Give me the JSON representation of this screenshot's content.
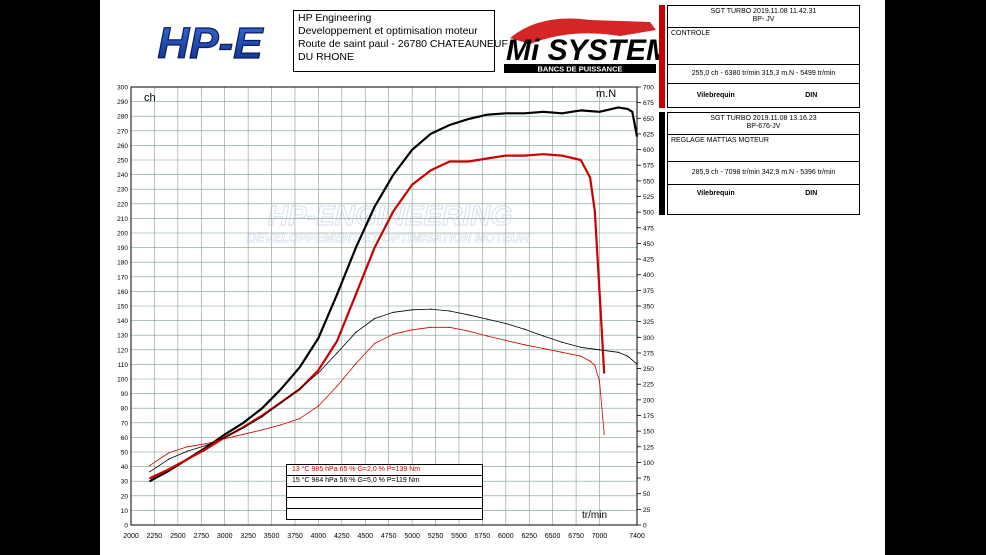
{
  "header": {
    "logo_left_text": "HP-E",
    "company_lines": [
      "HP Engineering",
      "Developpement et optimisation moteur",
      "Route de saint paul - 26780 CHATEAUNEUF",
      "DU RHONE"
    ],
    "logo_right_text": "Mi SYSTEMS",
    "logo_right_subtitle": "BANCS DE PUISSANCE"
  },
  "watermark": {
    "line1": "HP-ENGINEERING",
    "line2": "DEVELOPPEMENT ET OPTIMISATION MOTEUR"
  },
  "runs": [
    {
      "color": "#cc0000",
      "head1": "SGT TURBO   2019.11.08 11.42.31",
      "head2": "BP-      JV",
      "note": "CONTROLE",
      "values": "255,0 ch - 6380 tr/min      315,3 m.N - 5499 tr/min",
      "foot_left": "Vilebrequin",
      "foot_right": "DIN"
    },
    {
      "color": "#000000",
      "head1": "SGT TURBO   2019.11.08 13.16.23",
      "head2": "BP-676-JV",
      "note": "REGLAGE MATTIAS MOTEUR",
      "values": "285,9 ch - 7098 tr/min      342,9 m.N - 5396 tr/min",
      "foot_left": "Vilebrequin",
      "foot_right": "DIN"
    }
  ],
  "conditions": {
    "line1": "13 °C    985 hPa    65 %    G=2,0 %    P=139 Nm",
    "line2": "15 °C    984 hPa    56 %    G=5,0 %    P=119 Nm"
  },
  "chart_data": {
    "type": "line",
    "xlabel": "tr/min",
    "ylabel_left": "ch",
    "ylabel_right": "m.N",
    "xlim": [
      2000,
      7400
    ],
    "ylim_left": [
      0,
      300
    ],
    "ylim_right": [
      0,
      700
    ],
    "x_ticks": [
      2000,
      2250,
      2500,
      2750,
      3000,
      3250,
      3500,
      3750,
      4000,
      4250,
      4500,
      4750,
      5000,
      5250,
      5500,
      5750,
      6000,
      6250,
      6500,
      6750,
      7000,
      7400
    ],
    "y_left_ticks": [
      0,
      10,
      20,
      30,
      40,
      50,
      60,
      70,
      80,
      90,
      100,
      110,
      120,
      130,
      140,
      150,
      160,
      170,
      180,
      190,
      200,
      210,
      220,
      230,
      240,
      250,
      260,
      270,
      280,
      290,
      300
    ],
    "y_right_ticks": [
      0,
      25,
      50,
      75,
      100,
      125,
      150,
      175,
      200,
      225,
      250,
      275,
      300,
      325,
      350,
      375,
      400,
      425,
      450,
      475,
      500,
      525,
      550,
      575,
      600,
      625,
      650,
      675,
      700
    ],
    "grid": true,
    "series": [
      {
        "name": "",
        "axis": "left",
        "color": "#000000",
        "style": "thick",
        "x": [
          2200,
          2400,
          2600,
          2800,
          3000,
          3200,
          3400,
          3600,
          3800,
          4000,
          4200,
          4400,
          4600,
          4800,
          5000,
          5200,
          5400,
          5600,
          5800,
          6000,
          6200,
          6400,
          6600,
          6800,
          7000,
          7200,
          7300,
          7350,
          7400
        ],
        "y": [
          30,
          37,
          45,
          53,
          62,
          70,
          80,
          93,
          108,
          128,
          158,
          190,
          218,
          240,
          257,
          268,
          274,
          278,
          281,
          282,
          282,
          283,
          282,
          284,
          283,
          286,
          285,
          283,
          266
        ]
      },
      {
        "name": "",
        "axis": "left",
        "color": "#cc0000",
        "style": "thick",
        "x": [
          2200,
          2400,
          2600,
          2800,
          3000,
          3200,
          3400,
          3600,
          3800,
          4000,
          4200,
          4400,
          4600,
          4800,
          5000,
          5200,
          5400,
          5600,
          5800,
          6000,
          6200,
          6400,
          6600,
          6800,
          6900,
          6950,
          7000,
          7050
        ],
        "y": [
          32,
          38,
          45,
          52,
          60,
          67,
          75,
          84,
          93,
          106,
          126,
          158,
          190,
          215,
          233,
          243,
          249,
          249,
          251,
          253,
          253,
          254,
          253,
          250,
          238,
          215,
          160,
          104
        ]
      },
      {
        "name": "",
        "axis": "right",
        "color": "#000000",
        "style": "thin",
        "x": [
          2200,
          2400,
          2600,
          2800,
          3000,
          3200,
          3400,
          3600,
          3800,
          4000,
          4200,
          4400,
          4600,
          4800,
          5000,
          5200,
          5400,
          5600,
          5800,
          6000,
          6200,
          6400,
          6600,
          6800,
          7000,
          7200,
          7300,
          7400
        ],
        "y": [
          85,
          105,
          118,
          127,
          140,
          155,
          173,
          195,
          218,
          243,
          275,
          308,
          330,
          340,
          344,
          345,
          342,
          336,
          329,
          322,
          313,
          302,
          292,
          284,
          280,
          276,
          270,
          257
        ]
      },
      {
        "name": "",
        "axis": "right",
        "color": "#cc0000",
        "style": "thin",
        "x": [
          2200,
          2400,
          2600,
          2800,
          3000,
          3200,
          3400,
          3600,
          3800,
          4000,
          4200,
          4400,
          4600,
          4800,
          5000,
          5200,
          5400,
          5600,
          5800,
          6000,
          6200,
          6400,
          6600,
          6800,
          6900,
          6950,
          7000,
          7050
        ],
        "y": [
          95,
          115,
          125,
          130,
          138,
          145,
          152,
          160,
          170,
          190,
          222,
          258,
          290,
          305,
          312,
          316,
          316,
          310,
          302,
          295,
          288,
          282,
          276,
          270,
          262,
          255,
          230,
          145
        ]
      }
    ]
  }
}
